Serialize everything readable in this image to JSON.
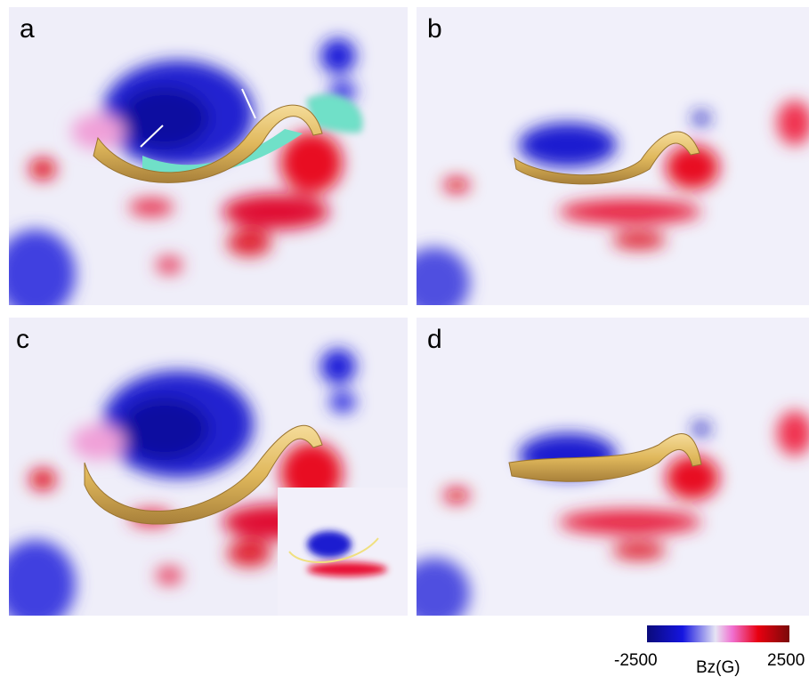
{
  "panels": [
    {
      "label": "a"
    },
    {
      "label": "b"
    },
    {
      "label": "c"
    },
    {
      "label": "d"
    }
  ],
  "colorbar": {
    "title": "Bz(G)",
    "min": -2500,
    "max": 2500
  }
}
